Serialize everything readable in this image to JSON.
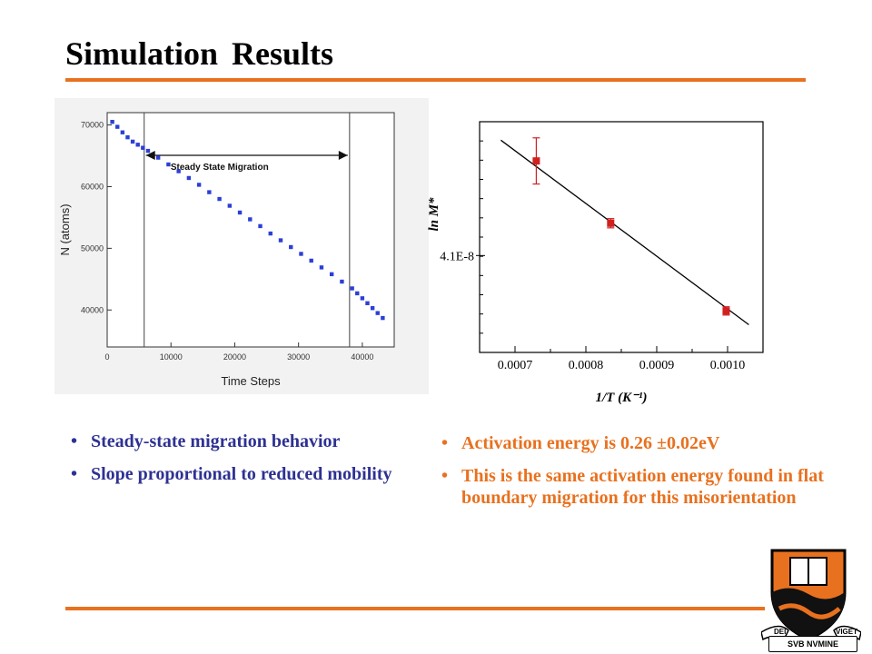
{
  "slide": {
    "title": "Simulation Results",
    "accent_color": "#e8711f",
    "left_bullets": [
      "Steady-state migration behavior",
      "Slope proportional to reduced mobility"
    ],
    "right_bullets": [
      "Activation energy is 0.26 ±0.02eV",
      "This is the same activation energy found in flat boundary migration for this misorientation"
    ],
    "left_bullet_color": "#2e3192",
    "right_bullet_color": "#e8711f",
    "logo": {
      "icon": "princeton-shield-icon",
      "motto_top": "DEI",
      "motto_right": "VIGET",
      "motto_bottom": "SVB NVMINE"
    }
  },
  "chart_data": [
    {
      "type": "scatter",
      "xlabel": "Time Steps",
      "ylabel": "N (atoms)",
      "xlim": [
        0,
        45000
      ],
      "ylim": [
        34000,
        72000
      ],
      "xticks": [
        0,
        10000,
        20000,
        30000,
        40000
      ],
      "yticks": [
        40000,
        50000,
        60000,
        70000
      ],
      "annotation": "Steady State Migration",
      "annotation_range": [
        5800,
        38000
      ],
      "marker_color": "#2b3fd6",
      "series": [
        {
          "x": [
            800,
            1600,
            2400,
            3200,
            4000,
            4800,
            5600,
            6400,
            8000,
            9600,
            11200,
            12800,
            14400,
            16000,
            17600,
            19200,
            20800,
            22400,
            24000,
            25600,
            27200,
            28800,
            30400,
            32000,
            33600,
            35200,
            36800,
            38400,
            39200,
            40000,
            40800,
            41600,
            42400,
            43200
          ],
          "y": [
            70500,
            69700,
            68800,
            68000,
            67300,
            66800,
            66300,
            65800,
            64700,
            63600,
            62500,
            61400,
            60300,
            59100,
            58000,
            56900,
            55800,
            54700,
            53600,
            52400,
            51300,
            50200,
            49100,
            48000,
            46900,
            45800,
            44600,
            43500,
            42700,
            41900,
            41100,
            40300,
            39500,
            38700
          ]
        }
      ]
    },
    {
      "type": "scatter",
      "xlabel": "1/T (K⁻¹)",
      "ylabel": "ln M*",
      "xlim": [
        0.00065,
        0.00105
      ],
      "xticks": [
        "0.0007",
        "0.0008",
        "0.0009",
        "0.0010"
      ],
      "ytick_label": "4.1E-8",
      "point_color": "#d02020",
      "line_color": "#000000",
      "points": [
        {
          "x": 0.00073,
          "y": 0.83,
          "err": 0.1
        },
        {
          "x": 0.000835,
          "y": 0.56,
          "err": 0.02
        },
        {
          "x": 0.000998,
          "y": 0.18,
          "err": 0.018
        }
      ],
      "fit": {
        "x": [
          0.00068,
          0.00103
        ],
        "y": [
          0.92,
          0.12
        ]
      },
      "ylim": [
        0,
        1
      ]
    }
  ]
}
